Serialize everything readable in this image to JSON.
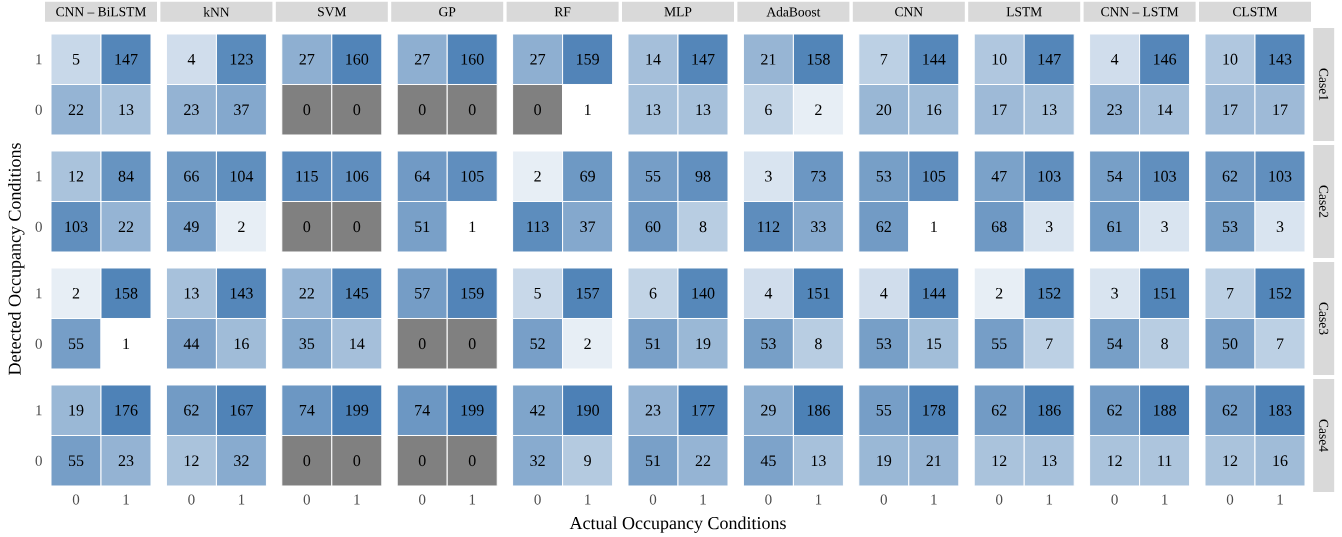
{
  "chart_data": [
    {
      "type": "heatmap",
      "title": "CNN – BiLSTM",
      "ylabel": "Detected Occupancy Conditions",
      "categories": [
        "0",
        "1"
      ],
      "y_categories": [
        "1",
        "0",
        "1",
        "0",
        "1",
        "0",
        "1",
        "0"
      ],
      "data_labels": true,
      "cells": [
        [
          5,
          147
        ],
        [
          22,
          13
        ],
        [
          12,
          84
        ],
        [
          103,
          22
        ],
        [
          2,
          158
        ],
        [
          55,
          1
        ],
        [
          19,
          176
        ],
        [
          55,
          23
        ]
      ]
    },
    {
      "type": "heatmap",
      "title": "kNN",
      "categories": [
        "0",
        "1"
      ],
      "y_categories": [
        "1",
        "0",
        "1",
        "0",
        "1",
        "0",
        "1",
        "0"
      ],
      "data_labels": true,
      "tick_labels": "x",
      "cells": [
        [
          4,
          123
        ],
        [
          23,
          37
        ],
        [
          66,
          104
        ],
        [
          49,
          2
        ],
        [
          13,
          143
        ],
        [
          44,
          16
        ],
        [
          62,
          167
        ],
        [
          12,
          32
        ]
      ]
    },
    {
      "type": "heatmap",
      "title": "SVM",
      "categories": [
        "0",
        "1"
      ],
      "y_categories": [
        "1",
        "0",
        "1",
        "0",
        "1",
        "0",
        "1",
        "0"
      ],
      "data_labels": true,
      "tick_labels": "x",
      "cells": [
        [
          27,
          160
        ],
        [
          0,
          0
        ],
        [
          115,
          106
        ],
        [
          0,
          0
        ],
        [
          22,
          145
        ],
        [
          35,
          14
        ],
        [
          74,
          199
        ],
        [
          0,
          0
        ]
      ]
    },
    {
      "type": "heatmap",
      "title": "GP",
      "categories": [
        "0",
        "1"
      ],
      "y_categories": [
        "1",
        "0",
        "1",
        "0",
        "1",
        "0",
        "1",
        "0"
      ],
      "data_labels": true,
      "tick_labels": "x",
      "cells": [
        [
          27,
          160
        ],
        [
          0,
          0
        ],
        [
          64,
          105
        ],
        [
          51,
          1
        ],
        [
          57,
          159
        ],
        [
          0,
          0
        ],
        [
          74,
          199
        ],
        [
          0,
          0
        ]
      ]
    },
    {
      "type": "heatmap",
      "title": "RF",
      "categories": [
        "0",
        "1"
      ],
      "y_categories": [
        "1",
        "0",
        "1",
        "0",
        "1",
        "0",
        "1",
        "0"
      ],
      "data_labels": true,
      "tick_labels": "x",
      "cells": [
        [
          27,
          159
        ],
        [
          0,
          1
        ],
        [
          2,
          69
        ],
        [
          113,
          37
        ],
        [
          5,
          157
        ],
        [
          52,
          2
        ],
        [
          42,
          190
        ],
        [
          32,
          9
        ]
      ]
    },
    {
      "type": "heatmap",
      "title": "MLP",
      "xlabel": "Actual Occupancy Conditions",
      "categories": [
        "0",
        "1"
      ],
      "y_categories": [
        "1",
        "0",
        "1",
        "0",
        "1",
        "0",
        "1",
        "0"
      ],
      "data_labels": true,
      "tick_labels": "x",
      "cells": [
        [
          14,
          147
        ],
        [
          13,
          13
        ],
        [
          55,
          98
        ],
        [
          60,
          8
        ],
        [
          6,
          140
        ],
        [
          51,
          19
        ],
        [
          23,
          177
        ],
        [
          51,
          22
        ]
      ]
    },
    {
      "type": "heatmap",
      "title": "AdaBoost",
      "categories": [
        "0",
        "1"
      ],
      "y_categories": [
        "1",
        "0",
        "1",
        "0",
        "1",
        "0",
        "1",
        "0"
      ],
      "data_labels": true,
      "tick_labels": "x",
      "cells": [
        [
          21,
          158
        ],
        [
          6,
          2
        ],
        [
          3,
          73
        ],
        [
          112,
          33
        ],
        [
          4,
          151
        ],
        [
          53,
          8
        ],
        [
          29,
          186
        ],
        [
          45,
          13
        ]
      ]
    },
    {
      "type": "heatmap",
      "title": "CNN",
      "categories": [
        "0",
        "1"
      ],
      "y_categories": [
        "1",
        "0",
        "1",
        "0",
        "1",
        "0",
        "1",
        "0"
      ],
      "data_labels": true,
      "tick_labels": "x",
      "cells": [
        [
          7,
          144
        ],
        [
          20,
          16
        ],
        [
          53,
          105
        ],
        [
          62,
          1
        ],
        [
          4,
          144
        ],
        [
          53,
          15
        ],
        [
          55,
          178
        ],
        [
          19,
          21
        ]
      ]
    },
    {
      "type": "heatmap",
      "title": "LSTM",
      "categories": [
        "0",
        "1"
      ],
      "y_categories": [
        "1",
        "0",
        "1",
        "0",
        "1",
        "0",
        "1",
        "0"
      ],
      "data_labels": true,
      "tick_labels": "x",
      "cells": [
        [
          10,
          147
        ],
        [
          17,
          13
        ],
        [
          47,
          103
        ],
        [
          68,
          3
        ],
        [
          2,
          152
        ],
        [
          55,
          7
        ],
        [
          62,
          186
        ],
        [
          12,
          13
        ]
      ]
    },
    {
      "type": "heatmap",
      "title": "CNN – LSTM",
      "categories": [
        "0",
        "1"
      ],
      "y_categories": [
        "1",
        "0",
        "1",
        "0",
        "1",
        "0",
        "1",
        "0"
      ],
      "data_labels": true,
      "tick_labels": "x",
      "cells": [
        [
          4,
          146
        ],
        [
          23,
          14
        ],
        [
          54,
          103
        ],
        [
          61,
          3
        ],
        [
          3,
          151
        ],
        [
          54,
          8
        ],
        [
          62,
          188
        ],
        [
          12,
          11
        ]
      ]
    },
    {
      "type": "heatmap",
      "title": "CLSTM",
      "annotations": [
        "Case1",
        "Case2",
        "Case3",
        "Case4"
      ],
      "categories": [
        "0",
        "1"
      ],
      "y_categories": [
        "1",
        "0",
        "1",
        "0",
        "1",
        "0",
        "1",
        "0"
      ],
      "data_labels": true,
      "tick_labels": "x",
      "cells": [
        [
          10,
          143
        ],
        [
          17,
          17
        ],
        [
          62,
          103
        ],
        [
          53,
          3
        ],
        [
          7,
          152
        ],
        [
          50,
          7
        ],
        [
          62,
          183
        ],
        [
          12,
          16
        ]
      ]
    }
  ]
}
